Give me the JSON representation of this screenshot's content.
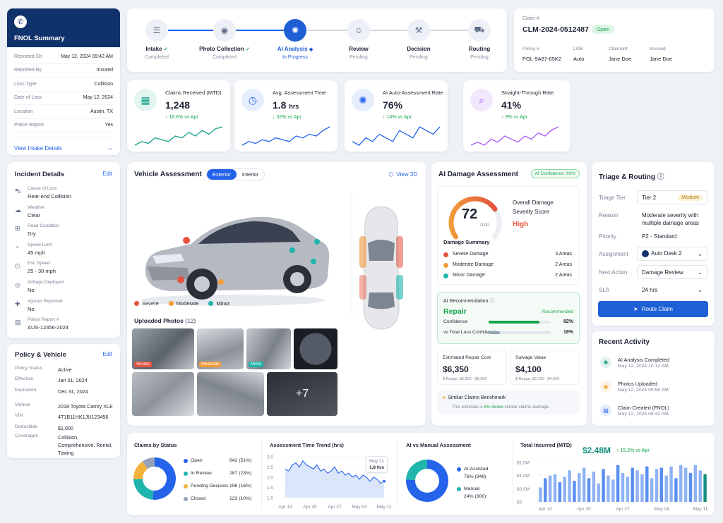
{
  "fnol": {
    "title": "FNOL Summary",
    "rows": [
      {
        "k": "Reported On",
        "v": "May 12, 2024 09:42 AM"
      },
      {
        "k": "Reported By",
        "v": "Insured"
      },
      {
        "k": "Loss Type",
        "v": "Collision"
      },
      {
        "k": "Date of Loss",
        "v": "May 12, 2024"
      },
      {
        "k": "Location",
        "v": "Austin, TX"
      },
      {
        "k": "Police Report",
        "v": "Yes"
      }
    ],
    "link": "View Intake Details"
  },
  "steps": [
    {
      "name": "Intake",
      "status": "Completed",
      "check": "✓"
    },
    {
      "name": "Photo Collection",
      "status": "Completed",
      "check": "✓"
    },
    {
      "name": "AI Analysis",
      "status": "In Progress",
      "check": "◆"
    },
    {
      "name": "Review",
      "status": "Pending",
      "check": ""
    },
    {
      "name": "Decision",
      "status": "Pending",
      "check": ""
    },
    {
      "name": "Routing",
      "status": "Pending",
      "check": ""
    }
  ],
  "claim": {
    "label": "Claim #",
    "number": "CLM-2024-0512487",
    "status": "Open",
    "fields": [
      {
        "k": "Policy #",
        "v": "POL-9A87-65K2"
      },
      {
        "k": "LOB",
        "v": "Auto"
      },
      {
        "k": "Claimant",
        "v": "Jane Doe"
      },
      {
        "k": "Insured",
        "v": "Jane Doe"
      }
    ]
  },
  "kpis": [
    {
      "label": "Claims Received (MTD)",
      "value": "1,248",
      "unit": "",
      "trend": "↑ 18.6% vs Apr",
      "color": "#16a085",
      "spark": [
        5,
        7,
        6,
        9,
        8,
        7,
        10,
        9,
        12,
        10,
        13,
        11,
        14,
        15
      ]
    },
    {
      "label": "Avg. Assessment Time",
      "value": "1.8",
      "unit": "hrs",
      "trend": "↓ 32% vs Apr",
      "color": "#2563eb",
      "spark": [
        4,
        6,
        5,
        7,
        6,
        8,
        7,
        6,
        9,
        8,
        10,
        9,
        12,
        14
      ]
    },
    {
      "label": "AI Auto-Assessment Rate",
      "value": "76%",
      "unit": "",
      "trend": "↑ 14% vs Apr",
      "color": "#2563eb",
      "spark": [
        8,
        7,
        9,
        8,
        10,
        9,
        8,
        11,
        10,
        9,
        12,
        11,
        10,
        12
      ]
    },
    {
      "label": "Straight-Through Rate",
      "value": "41%",
      "unit": "",
      "trend": "↑ 9% vs Apr",
      "color": "#a855f7",
      "spark": [
        4,
        5,
        4,
        6,
        5,
        7,
        6,
        5,
        7,
        6,
        8,
        7,
        9,
        10
      ]
    }
  ],
  "incident": {
    "title": "Incident Details",
    "edit": "Edit",
    "rows": [
      {
        "k": "Cause of Loss",
        "v": "Rear-end Collision"
      },
      {
        "k": "Weather",
        "v": "Clear"
      },
      {
        "k": "Road Condition",
        "v": "Dry"
      },
      {
        "k": "Speed Limit",
        "v": "45 mph"
      },
      {
        "k": "Est. Speed",
        "v": "25 - 30 mph"
      },
      {
        "k": "Airbags Deployed",
        "v": "No"
      },
      {
        "k": "Injuries Reported",
        "v": "No"
      },
      {
        "k": "Police Report #",
        "v": "AUS-12456-2024"
      }
    ]
  },
  "policy": {
    "title": "Policy & Vehicle",
    "edit": "Edit",
    "rows": [
      {
        "k": "Policy Status",
        "v": "Active"
      },
      {
        "k": "Effective",
        "v": "Jan 01, 2024"
      },
      {
        "k": "Expiration",
        "v": "Dec 31, 2024"
      },
      {
        "k": "Vehicle",
        "v": "2018 Toyota Camry XLE"
      },
      {
        "k": "VIN",
        "v": "4T1B11HK1JU123456"
      },
      {
        "k": "Deductible",
        "v": "$1,000"
      },
      {
        "k": "Coverages",
        "v": "Collision, Comprehensive, Rental, Towing"
      }
    ]
  },
  "vehicle": {
    "title": "Vehicle Assessment",
    "tab_exterior": "Exterior",
    "tab_interior": "Interior",
    "view3d": "View 3D",
    "legend": [
      {
        "label": "Severe",
        "color": "#e5533d"
      },
      {
        "label": "Moderate",
        "color": "#f29b38"
      },
      {
        "label": "Minor",
        "color": "#1fb5ad"
      }
    ],
    "photos_title": "Uploaded Photos",
    "photos_count": "(12)",
    "photo_tags": [
      "Severe",
      "Moderate",
      "Minor"
    ],
    "more": "+7"
  },
  "damage": {
    "title": "AI Damage Assessment",
    "confidence": "AI Confidence: 92%",
    "score": "72",
    "score_max": "/100",
    "score_fraction": 0.72,
    "score_label": "Overall Damage Severity Score",
    "severity": "High",
    "summary_title": "Damage Summary",
    "summary": [
      {
        "label": "Severe Damage",
        "value": "3 Areas",
        "color": "#e5533d"
      },
      {
        "label": "Moderate Damage",
        "value": "2 Areas",
        "color": "#f29b38"
      },
      {
        "label": "Minor Damage",
        "value": "2 Areas",
        "color": "#1fb5ad"
      }
    ],
    "rec_title": "AI Recommendation",
    "rec": "Repair",
    "rec_badge": "Recommended",
    "bars": [
      {
        "label": "Confidence",
        "value": "82%",
        "pct": 82,
        "color": "#16a34a"
      },
      {
        "label": "vs Total Loss Confidence",
        "value": "18%",
        "pct": 18,
        "color": "#94a3b8"
      }
    ],
    "cost_label": "Estimated Repair Cost",
    "cost": "$6,350",
    "cost_range": "$ Range: $5,800 - $6,900",
    "salvage_label": "Salvage Value",
    "salvage": "$4,100",
    "salvage_range": "$ Range: $3,700 - $4,600",
    "bench_title": "Similar Claims Benchmark",
    "bench_pre": "This estimate is ",
    "bench_hl": "6% below",
    "bench_post": " similar claims average."
  },
  "triage": {
    "title": "Triage & Routing",
    "tier_label": "Triage Tier",
    "tier": "Tier 2",
    "tier_badge": "Medium",
    "reason_label": "Reason",
    "reason": "Moderate severity with multiple damage areas",
    "priority_label": "Priority",
    "priority": "P2 - Standard",
    "assign_label": "Assignment",
    "assign": "Auto Desk 2",
    "next_label": "Next Action",
    "next": "Damage Review",
    "sla_label": "SLA",
    "sla": "24 hrs",
    "button": "Route Claim"
  },
  "activity": {
    "title": "Recent Activity",
    "items": [
      {
        "label": "AI Analysis Completed",
        "time": "May 12, 2024 10:12 AM",
        "color": "#16a085"
      },
      {
        "label": "Photos Uploaded",
        "time": "May 12, 2024 09:58 AM",
        "color": "#f2a93b"
      },
      {
        "label": "Claim Created (FNOL)",
        "time": "May 12, 2024 09:42 AM",
        "color": "#2563eb"
      }
    ]
  },
  "status_chart": {
    "title": "Claims by Status",
    "items": [
      {
        "label": "Open",
        "value": "642 (51%)",
        "n": 642,
        "color": "#2563eb"
      },
      {
        "label": "In Review",
        "value": "287 (23%)",
        "n": 287,
        "color": "#1fb5ad"
      },
      {
        "label": "Pending Decision",
        "value": "196 (16%)",
        "n": 196,
        "color": "#f2b23b"
      },
      {
        "label": "Closed",
        "value": "123 (10%)",
        "n": 123,
        "color": "#94a3b8"
      }
    ]
  },
  "trend_chart": {
    "title": "Assessment Time Trend (hrs)",
    "yticks": [
      "3.0",
      "2.5",
      "2.0",
      "1.5",
      "1.0"
    ],
    "xticks": [
      "Apr 13",
      "Apr 20",
      "Apr 27",
      "May 04",
      "May 11"
    ],
    "tip_date": "May 11",
    "tip_value": "1.8 hrs"
  },
  "ai_chart": {
    "title": "AI vs Manual Assessment",
    "items": [
      {
        "label": "AI-Assisted",
        "value": "76% (948)",
        "n": 948,
        "color": "#2563eb"
      },
      {
        "label": "Manual",
        "value": "24% (300)",
        "n": 300,
        "color": "#1fb5ad"
      }
    ]
  },
  "incurred": {
    "title": "Total Incurred (MTD)",
    "value": "$2.48M",
    "trend": "↑ 15.3% vs Apr",
    "yticks": [
      "$1.5M",
      "$1.0M",
      "$0.5M",
      "$0"
    ],
    "xticks": [
      "Apr 13",
      "Apr 20",
      "Apr 27",
      "May 04",
      "May 11"
    ]
  },
  "chart_data": [
    {
      "type": "pie",
      "title": "Claims by Status",
      "categories": [
        "Open",
        "In Review",
        "Pending Decision",
        "Closed"
      ],
      "values": [
        642,
        287,
        196,
        123
      ]
    },
    {
      "type": "line",
      "title": "Assessment Time Trend (hrs)",
      "ylim": [
        1.0,
        3.0
      ],
      "x": [
        "Apr 13",
        "",
        "",
        "",
        "",
        "",
        "",
        "Apr 20",
        "",
        "",
        "",
        "",
        "",
        "",
        "Apr 27",
        "",
        "",
        "",
        "",
        "",
        "",
        "May 04",
        "",
        "",
        "",
        "",
        "",
        "",
        "May 11"
      ],
      "values": [
        2.4,
        2.3,
        2.6,
        2.7,
        2.5,
        2.8,
        2.6,
        2.5,
        2.4,
        2.6,
        2.3,
        2.4,
        2.2,
        2.3,
        2.5,
        2.2,
        2.3,
        2.1,
        2.2,
        2.0,
        2.1,
        1.9,
        2.1,
        2.0,
        1.8,
        2.0,
        1.9,
        1.7,
        1.8
      ]
    },
    {
      "type": "pie",
      "title": "AI vs Manual Assessment",
      "categories": [
        "AI-Assisted",
        "Manual"
      ],
      "values": [
        948,
        300
      ]
    },
    {
      "type": "bar",
      "title": "Total Incurred (MTD)",
      "ylim": [
        0,
        1.6
      ],
      "values": [
        0.55,
        0.9,
        1.0,
        1.05,
        0.75,
        0.95,
        1.2,
        0.8,
        1.1,
        1.3,
        0.9,
        1.15,
        0.7,
        1.25,
        1.0,
        0.85,
        1.4,
        1.1,
        0.95,
        1.3,
        1.2,
        1.05,
        1.35,
        0.9,
        1.25,
        1.3,
        1.0,
        1.35,
        0.9,
        1.4,
        1.3,
        1.1,
        1.4,
        1.2,
        1.05
      ]
    }
  ]
}
